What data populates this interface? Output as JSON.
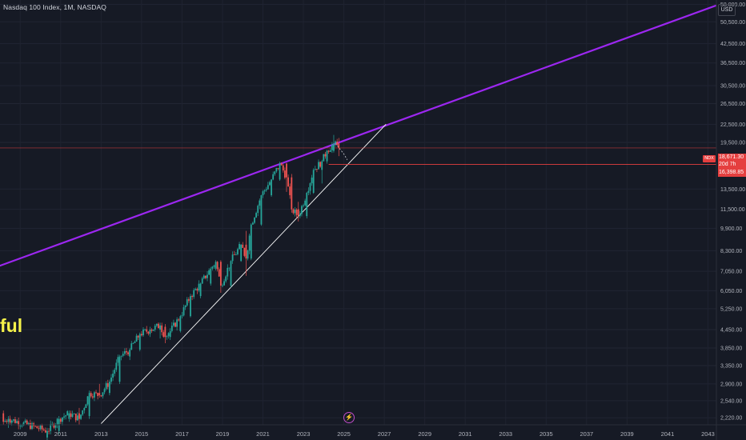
{
  "header": {
    "symbol_title": "Nasdaq 100 Index, 1M, NASDAQ"
  },
  "currency_button": "USD",
  "overlay_text": "ful",
  "icons": {
    "flash": "lightning-icon"
  },
  "price_axis_labels": [
    "58,000.00",
    "50,500.00",
    "42,500.00",
    "36,500.00",
    "30,500.00",
    "26,500.00",
    "22,500.00",
    "19,500.00",
    "13,500.00",
    "11,500.00",
    "9,900.00",
    "8,300.00",
    "7,050.00",
    "6,050.00",
    "5,250.00",
    "4,450.00",
    "3,850.00",
    "3,350.00",
    "2,900.00",
    "2,540.00",
    "2,220.00"
  ],
  "time_axis_labels": [
    "2009",
    "2011",
    "2013",
    "2015",
    "2017",
    "2019",
    "2021",
    "2023",
    "2025",
    "2027",
    "2029",
    "2031",
    "2033",
    "2035",
    "2037",
    "2039",
    "2041",
    "2043"
  ],
  "price_tags": {
    "symbol": "NDX",
    "last_price": "18,671.30",
    "countdown": "20d 7h",
    "level": "16,398.85"
  },
  "colors": {
    "background": "#161a25",
    "up": "#26a69a",
    "down": "#ef5350",
    "resistance_line": "#9c27f0",
    "support_line": "#ffffff",
    "level_line": "#e53f3f"
  },
  "chart_data": {
    "type": "candlestick",
    "title": "Nasdaq 100 Index, 1M, NASDAQ",
    "scale": "log",
    "x_range": [
      "2008-01",
      "2043-06"
    ],
    "y_range": [
      2100,
      60000
    ],
    "grid": true,
    "series": [
      {
        "name": "NDX",
        "type": "candles",
        "points": [
          [
            "2008-03",
            2300,
            2350,
            2100,
            2150
          ],
          [
            "2008-06",
            2150,
            2250,
            2050,
            2200
          ],
          [
            "2010-05",
            1900,
            2050,
            1850,
            2000
          ],
          [
            "2010-12",
            2000,
            2250,
            1950,
            2200
          ],
          [
            "2011-06",
            2200,
            2350,
            2150,
            2300
          ],
          [
            "2011-12",
            2300,
            2400,
            2100,
            2200
          ],
          [
            "2012-06",
            2250,
            2750,
            2200,
            2700
          ],
          [
            "2012-12",
            2700,
            2900,
            2600,
            2650
          ],
          [
            "2013-06",
            2700,
            3000,
            2650,
            2950
          ],
          [
            "2013-12",
            2950,
            3650,
            2900,
            3600
          ],
          [
            "2014-06",
            3600,
            3850,
            3500,
            3800
          ],
          [
            "2014-12",
            3800,
            4350,
            3750,
            4300
          ],
          [
            "2015-06",
            4300,
            4550,
            4200,
            4450
          ],
          [
            "2015-12",
            4450,
            4700,
            4150,
            4600
          ],
          [
            "2016-03",
            4550,
            4650,
            4000,
            4200
          ],
          [
            "2016-06",
            4200,
            4500,
            4100,
            4400
          ],
          [
            "2016-12",
            4400,
            5000,
            4350,
            4950
          ],
          [
            "2017-06",
            4950,
            5900,
            4900,
            5800
          ],
          [
            "2017-12",
            5800,
            6450,
            5700,
            6400
          ],
          [
            "2018-06",
            6400,
            7300,
            6300,
            7200
          ],
          [
            "2018-09",
            7200,
            7700,
            7100,
            7600
          ],
          [
            "2018-12",
            7600,
            7700,
            5950,
            6300
          ],
          [
            "2019-06",
            6300,
            7700,
            6200,
            7650
          ],
          [
            "2019-12",
            7650,
            8750,
            7600,
            8700
          ],
          [
            "2020-03",
            8700,
            9700,
            6800,
            7800
          ],
          [
            "2020-06",
            7800,
            10300,
            7700,
            10200
          ],
          [
            "2020-12",
            10200,
            12900,
            10100,
            12850
          ],
          [
            "2021-06",
            12850,
            14600,
            12700,
            14550
          ],
          [
            "2021-11",
            14550,
            16750,
            14400,
            16500
          ],
          [
            "2022-03",
            16500,
            16600,
            13200,
            14800
          ],
          [
            "2022-06",
            14800,
            15200,
            11200,
            11500
          ],
          [
            "2022-10",
            11500,
            12200,
            10450,
            10900
          ],
          [
            "2023-03",
            10900,
            13200,
            10700,
            13100
          ],
          [
            "2023-07",
            13100,
            15900,
            13000,
            15700
          ],
          [
            "2023-12",
            15700,
            17000,
            14100,
            16800
          ],
          [
            "2024-03",
            16800,
            18400,
            16500,
            18250
          ],
          [
            "2024-07",
            18250,
            20700,
            18000,
            19350
          ],
          [
            "2024-10",
            19350,
            20200,
            17500,
            18671.3
          ]
        ]
      },
      {
        "name": "Resistance trendline",
        "type": "line",
        "points": [
          [
            "2007-11",
            7300
          ],
          [
            "2043-06",
            57500
          ]
        ]
      },
      {
        "name": "Support trendline",
        "type": "line",
        "points": [
          [
            "2013-01",
            2120
          ],
          [
            "2027-02",
            22500
          ]
        ]
      },
      {
        "name": "Horizontal level",
        "type": "hline",
        "value": 16398.85,
        "from": "2024-04"
      },
      {
        "name": "Projection",
        "type": "dashed",
        "points": [
          [
            "2024-08",
            19350
          ],
          [
            "2025-01",
            17800
          ],
          [
            "2025-03",
            17000
          ]
        ]
      }
    ]
  }
}
